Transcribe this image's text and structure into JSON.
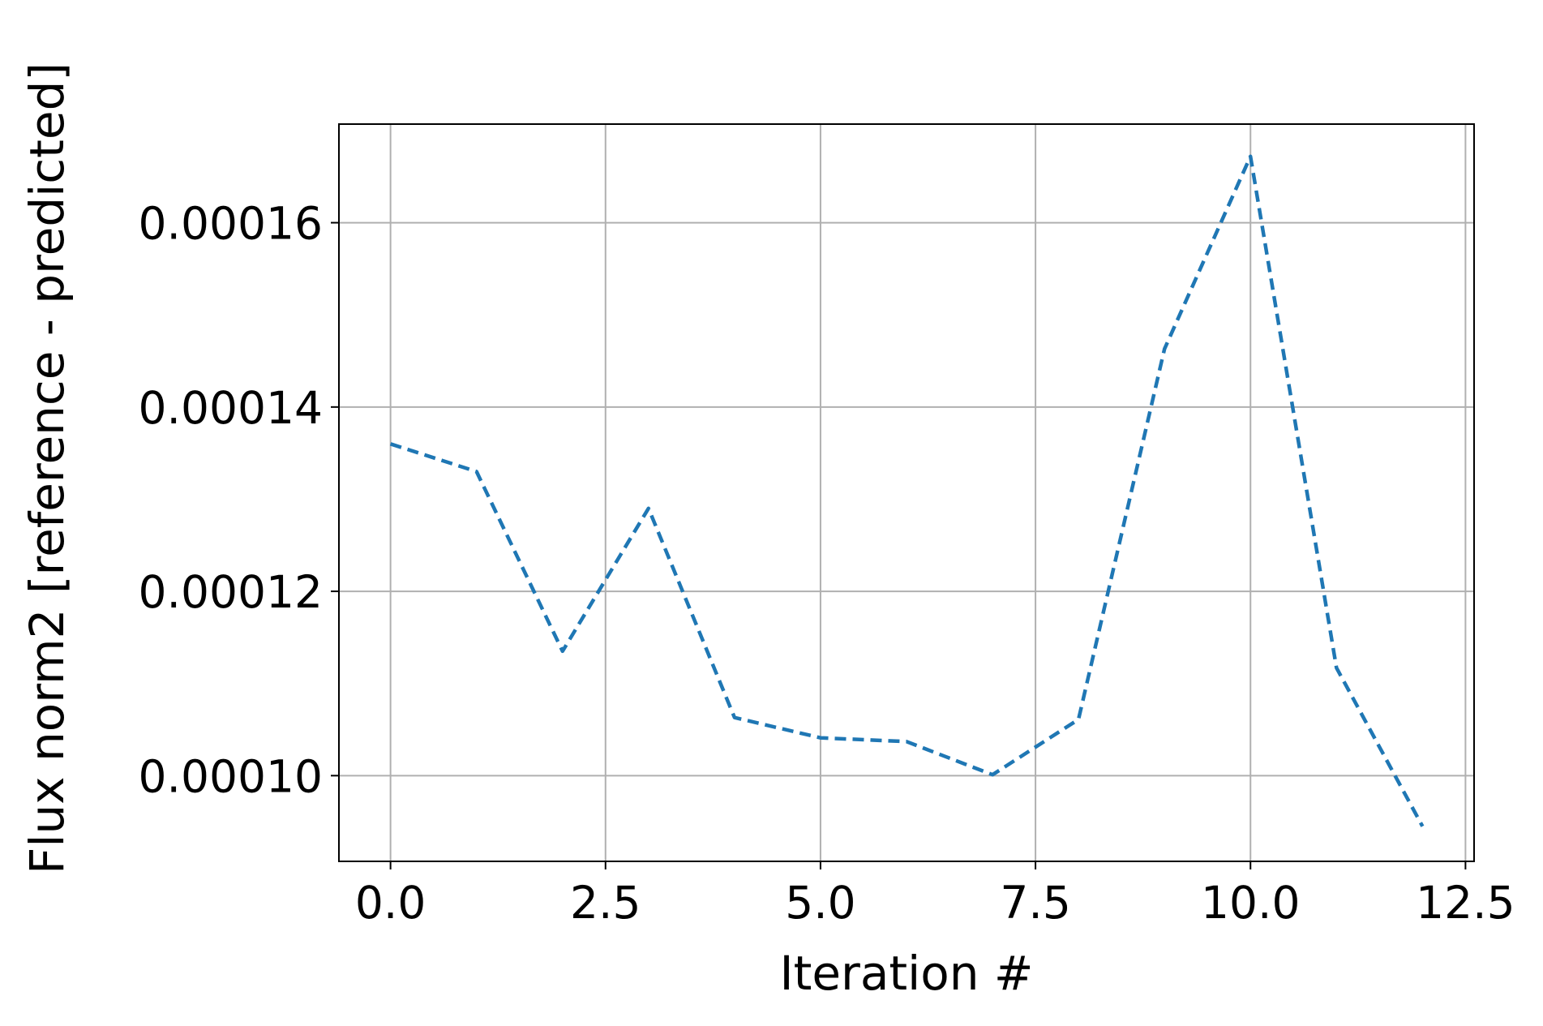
{
  "chart_data": {
    "type": "line",
    "title": "",
    "xlabel": "Iteration #",
    "ylabel": "Flux norm2 [reference - predicted]",
    "xlim": [
      -0.6,
      12.6
    ],
    "ylim": [
      9.07e-05,
      0.0001707
    ],
    "xticks": [
      0.0,
      2.5,
      5.0,
      7.5,
      10.0,
      12.5
    ],
    "xtick_labels": [
      "0.0",
      "2.5",
      "5.0",
      "7.5",
      "10.0",
      "12.5"
    ],
    "yticks": [
      0.0001,
      0.00012,
      0.00014,
      0.00016
    ],
    "ytick_labels": [
      "0.00010",
      "0.00012",
      "0.00014",
      "0.00016"
    ],
    "grid": true,
    "series": [
      {
        "color": "#1f77b4",
        "line_style": "dashed",
        "x": [
          0,
          1,
          2,
          3,
          4,
          5,
          6,
          7,
          8,
          9,
          10,
          11,
          12
        ],
        "y": [
          0.000136,
          0.000133,
          0.0001135,
          0.000129,
          0.0001063,
          0.0001041,
          0.0001037,
          0.0001001,
          0.0001061,
          0.0001463,
          0.0001672,
          0.0001117,
          9.45e-05
        ]
      }
    ]
  }
}
